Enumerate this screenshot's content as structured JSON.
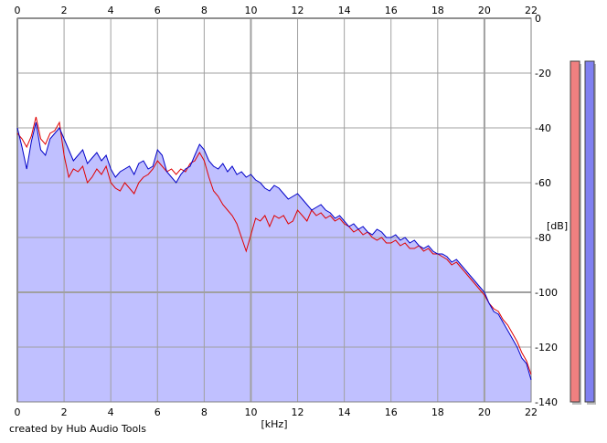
{
  "chart_data": {
    "type": "area",
    "xlabel": "[kHz]",
    "ylabel": "[dB]",
    "xlim": [
      0,
      22
    ],
    "ylim": [
      -140,
      0
    ],
    "xticks": [
      "0",
      "2",
      "4",
      "6",
      "8",
      "10",
      "12",
      "14",
      "16",
      "18",
      "20",
      "22"
    ],
    "yticks": [
      "0",
      "-20",
      "-40",
      "-60",
      "-80",
      "-100",
      "-120",
      "-140"
    ],
    "grid": true,
    "series": [
      {
        "color": "#e00000",
        "x": [
          0.0,
          0.2,
          0.4,
          0.6,
          0.8,
          1.0,
          1.2,
          1.4,
          1.6,
          1.8,
          2.0,
          2.2,
          2.4,
          2.6,
          2.8,
          3.0,
          3.2,
          3.4,
          3.6,
          3.8,
          4.0,
          4.2,
          4.4,
          4.6,
          4.8,
          5.0,
          5.2,
          5.4,
          5.6,
          5.8,
          6.0,
          6.2,
          6.4,
          6.6,
          6.8,
          7.0,
          7.2,
          7.4,
          7.6,
          7.8,
          8.0,
          8.2,
          8.4,
          8.6,
          8.8,
          9.0,
          9.2,
          9.4,
          9.6,
          9.8,
          10.0,
          10.2,
          10.4,
          10.6,
          10.8,
          11.0,
          11.2,
          11.4,
          11.6,
          11.8,
          12.0,
          12.2,
          12.4,
          12.6,
          12.8,
          13.0,
          13.2,
          13.4,
          13.6,
          13.8,
          14.0,
          14.2,
          14.4,
          14.6,
          14.8,
          15.0,
          15.2,
          15.4,
          15.6,
          15.8,
          16.0,
          16.2,
          16.4,
          16.6,
          16.8,
          17.0,
          17.2,
          17.4,
          17.6,
          17.8,
          18.0,
          18.2,
          18.4,
          18.6,
          18.8,
          19.0,
          19.2,
          19.4,
          19.6,
          19.8,
          20.0,
          20.2,
          20.4,
          20.6,
          20.8,
          21.0,
          21.2,
          21.4,
          21.6,
          21.8,
          22.0
        ],
        "values": [
          -42,
          -44,
          -47,
          -43,
          -36,
          -44,
          -46,
          -42,
          -41,
          -38,
          -50,
          -58,
          -55,
          -56,
          -54,
          -60,
          -58,
          -55,
          -57,
          -54,
          -60,
          -62,
          -63,
          -60,
          -62,
          -64,
          -60,
          -58,
          -57,
          -55,
          -52,
          -54,
          -56,
          -55,
          -57,
          -55,
          -56,
          -53,
          -52,
          -49,
          -52,
          -58,
          -63,
          -65,
          -68,
          -70,
          -72,
          -75,
          -80,
          -85,
          -79,
          -73,
          -74,
          -72,
          -76,
          -72,
          -73,
          -72,
          -75,
          -74,
          -70,
          -72,
          -74,
          -70,
          -72,
          -71,
          -73,
          -72,
          -74,
          -73,
          -75,
          -76,
          -78,
          -77,
          -79,
          -78,
          -80,
          -81,
          -80,
          -82,
          -82,
          -81,
          -83,
          -82,
          -84,
          -84,
          -83,
          -85,
          -84,
          -86,
          -86,
          -87,
          -88,
          -90,
          -89,
          -91,
          -93,
          -95,
          -97,
          -99,
          -101,
          -104,
          -106,
          -107,
          -110,
          -112,
          -115,
          -118,
          -122,
          -125,
          -130
        ]
      },
      {
        "color": "#0000c8",
        "x": [
          0.0,
          0.2,
          0.4,
          0.6,
          0.8,
          1.0,
          1.2,
          1.4,
          1.6,
          1.8,
          2.0,
          2.2,
          2.4,
          2.6,
          2.8,
          3.0,
          3.2,
          3.4,
          3.6,
          3.8,
          4.0,
          4.2,
          4.4,
          4.6,
          4.8,
          5.0,
          5.2,
          5.4,
          5.6,
          5.8,
          6.0,
          6.2,
          6.4,
          6.6,
          6.8,
          7.0,
          7.2,
          7.4,
          7.6,
          7.8,
          8.0,
          8.2,
          8.4,
          8.6,
          8.8,
          9.0,
          9.2,
          9.4,
          9.6,
          9.8,
          10.0,
          10.2,
          10.4,
          10.6,
          10.8,
          11.0,
          11.2,
          11.4,
          11.6,
          11.8,
          12.0,
          12.2,
          12.4,
          12.6,
          12.8,
          13.0,
          13.2,
          13.4,
          13.6,
          13.8,
          14.0,
          14.2,
          14.4,
          14.6,
          14.8,
          15.0,
          15.2,
          15.4,
          15.6,
          15.8,
          16.0,
          16.2,
          16.4,
          16.6,
          16.8,
          17.0,
          17.2,
          17.4,
          17.6,
          17.8,
          18.0,
          18.2,
          18.4,
          18.6,
          18.8,
          19.0,
          19.2,
          19.4,
          19.6,
          19.8,
          20.0,
          20.2,
          20.4,
          20.6,
          20.8,
          21.0,
          21.2,
          21.4,
          21.6,
          21.8,
          22.0
        ],
        "values": [
          -40,
          -47,
          -55,
          -45,
          -38,
          -48,
          -50,
          -44,
          -42,
          -40,
          -44,
          -48,
          -52,
          -50,
          -48,
          -53,
          -51,
          -49,
          -52,
          -50,
          -55,
          -58,
          -56,
          -55,
          -54,
          -57,
          -53,
          -52,
          -55,
          -54,
          -48,
          -50,
          -56,
          -58,
          -60,
          -57,
          -55,
          -54,
          -50,
          -46,
          -48,
          -52,
          -54,
          -55,
          -53,
          -56,
          -54,
          -57,
          -56,
          -58,
          -57,
          -59,
          -60,
          -62,
          -63,
          -61,
          -62,
          -64,
          -66,
          -65,
          -64,
          -66,
          -68,
          -70,
          -69,
          -68,
          -70,
          -71,
          -73,
          -72,
          -74,
          -76,
          -75,
          -77,
          -76,
          -78,
          -79,
          -77,
          -78,
          -80,
          -80,
          -79,
          -81,
          -80,
          -82,
          -81,
          -83,
          -84,
          -83,
          -85,
          -86,
          -86,
          -87,
          -89,
          -88,
          -90,
          -92,
          -94,
          -96,
          -98,
          -100,
          -104,
          -107,
          -108,
          -111,
          -114,
          -117,
          -120,
          -124,
          -126,
          -132
        ]
      }
    ],
    "fill_value": -60,
    "fill_color": "#c0c0ff"
  },
  "meters": [
    {
      "color": "#f08080",
      "level": 0.0
    },
    {
      "color": "#8080f0",
      "level": 0.0
    }
  ],
  "footer": {
    "credit": "created by Hub Audio Tools"
  }
}
